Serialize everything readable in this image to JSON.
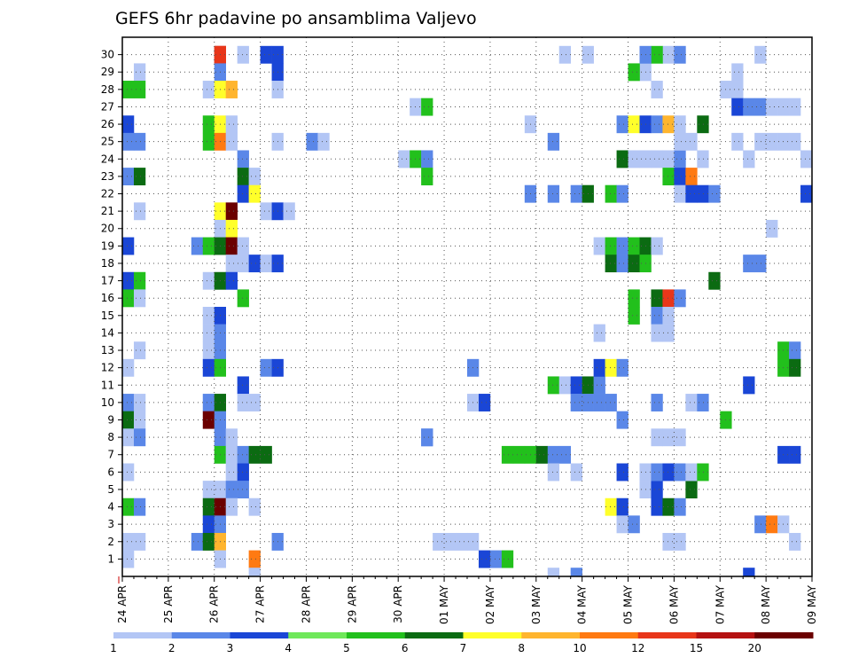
{
  "chart_data": {
    "type": "heatmap",
    "title": "GEFS 6hr padavine po ansamblima Valjevo",
    "y_ticks": [
      1,
      2,
      3,
      4,
      5,
      6,
      7,
      8,
      9,
      10,
      11,
      12,
      13,
      14,
      15,
      16,
      17,
      18,
      19,
      20,
      21,
      22,
      23,
      24,
      25,
      26,
      27,
      28,
      29,
      30
    ],
    "x_tick_labels": [
      "24 APR",
      "25 APR",
      "26 APR",
      "27 APR",
      "28 APR",
      "29 APR",
      "30 APR",
      "01 MAY",
      "02 MAY",
      "03 MAY",
      "04 MAY",
      "05 MAY",
      "06 MAY",
      "07 MAY",
      "08 MAY",
      "09 MAY"
    ],
    "x_range_days": [
      0,
      15
    ],
    "y_range_members": [
      0,
      31
    ],
    "grid": true,
    "colorbar": {
      "levels": [
        "1",
        "2",
        "3",
        "4",
        "5",
        "6",
        "7",
        "8",
        "10",
        "12",
        "15",
        "20"
      ],
      "colors": [
        "#b3c6f5",
        "#5a87e8",
        "#1a46d6",
        "#6fe85a",
        "#22c01c",
        "#0b6b12",
        "#ffff2a",
        "#ffb52e",
        "#ff7a12",
        "#e8361a",
        "#b51212",
        "#6b0000"
      ]
    },
    "cells_note": "each cell = [day_index(0.25=6h), member, color_class(0-11)]",
    "cells": [
      [
        2.0,
        30,
        10
      ],
      [
        2.0,
        30,
        9
      ],
      [
        2.5,
        30,
        0
      ],
      [
        3.0,
        30,
        2
      ],
      [
        3.25,
        30,
        2
      ],
      [
        0.25,
        29,
        0
      ],
      [
        2.0,
        29,
        1
      ],
      [
        3.25,
        29,
        2
      ],
      [
        0.0,
        28,
        4
      ],
      [
        0.25,
        28,
        4
      ],
      [
        1.75,
        28,
        0
      ],
      [
        2.0,
        28,
        6
      ],
      [
        2.25,
        28,
        7
      ],
      [
        3.25,
        28,
        0
      ],
      [
        6.25,
        27,
        0
      ],
      [
        6.5,
        27,
        4
      ],
      [
        0.0,
        26,
        2
      ],
      [
        1.75,
        26,
        4
      ],
      [
        2.0,
        26,
        6
      ],
      [
        2.25,
        26,
        0
      ],
      [
        0.0,
        25,
        1
      ],
      [
        0.25,
        25,
        1
      ],
      [
        1.75,
        25,
        4
      ],
      [
        2.0,
        25,
        8
      ],
      [
        2.25,
        25,
        0
      ],
      [
        3.25,
        25,
        0
      ],
      [
        4.0,
        25,
        1
      ],
      [
        4.25,
        25,
        0
      ],
      [
        2.5,
        24,
        1
      ],
      [
        6.0,
        24,
        0
      ],
      [
        6.25,
        24,
        4
      ],
      [
        6.5,
        24,
        1
      ],
      [
        0.0,
        23,
        1
      ],
      [
        0.25,
        23,
        5
      ],
      [
        2.5,
        23,
        5
      ],
      [
        2.75,
        23,
        0
      ],
      [
        6.5,
        23,
        4
      ],
      [
        2.5,
        22,
        2
      ],
      [
        2.75,
        22,
        6
      ],
      [
        0.25,
        21,
        0
      ],
      [
        2.0,
        21,
        6
      ],
      [
        2.25,
        21,
        11
      ],
      [
        3.0,
        21,
        0
      ],
      [
        3.25,
        21,
        2
      ],
      [
        3.5,
        21,
        0
      ],
      [
        2.0,
        20,
        0
      ],
      [
        2.25,
        20,
        6
      ],
      [
        0.0,
        19,
        2
      ],
      [
        1.5,
        19,
        1
      ],
      [
        1.75,
        19,
        4
      ],
      [
        2.0,
        19,
        5
      ],
      [
        2.25,
        19,
        11
      ],
      [
        2.5,
        19,
        0
      ],
      [
        2.25,
        18,
        0
      ],
      [
        2.5,
        18,
        0
      ],
      [
        2.75,
        18,
        2
      ],
      [
        3.0,
        18,
        0
      ],
      [
        3.25,
        18,
        2
      ],
      [
        0.0,
        17,
        2
      ],
      [
        0.25,
        17,
        4
      ],
      [
        1.75,
        17,
        0
      ],
      [
        2.0,
        17,
        5
      ],
      [
        2.25,
        17,
        2
      ],
      [
        0.0,
        16,
        4
      ],
      [
        0.25,
        16,
        0
      ],
      [
        2.5,
        16,
        4
      ],
      [
        1.75,
        15,
        0
      ],
      [
        2.0,
        15,
        2
      ],
      [
        1.75,
        14,
        0
      ],
      [
        2.0,
        14,
        1
      ],
      [
        0.25,
        13,
        0
      ],
      [
        1.75,
        13,
        0
      ],
      [
        2.0,
        13,
        1
      ],
      [
        0.0,
        12,
        0
      ],
      [
        1.75,
        12,
        2
      ],
      [
        2.0,
        12,
        4
      ],
      [
        3.0,
        12,
        1
      ],
      [
        3.25,
        12,
        2
      ],
      [
        2.5,
        11,
        2
      ],
      [
        0.0,
        10,
        1
      ],
      [
        0.25,
        10,
        0
      ],
      [
        1.75,
        10,
        1
      ],
      [
        2.0,
        10,
        5
      ],
      [
        2.5,
        10,
        0
      ],
      [
        2.75,
        10,
        0
      ],
      [
        0.0,
        9,
        5
      ],
      [
        0.25,
        9,
        0
      ],
      [
        1.75,
        9,
        11
      ],
      [
        2.0,
        9,
        1
      ],
      [
        0.0,
        8,
        0
      ],
      [
        0.25,
        8,
        1
      ],
      [
        2.0,
        8,
        1
      ],
      [
        2.25,
        8,
        0
      ],
      [
        6.5,
        8,
        1
      ],
      [
        2.0,
        7,
        4
      ],
      [
        2.25,
        7,
        0
      ],
      [
        2.5,
        7,
        1
      ],
      [
        2.75,
        7,
        5
      ],
      [
        3.0,
        7,
        5
      ],
      [
        0.0,
        6,
        0
      ],
      [
        2.25,
        6,
        0
      ],
      [
        2.5,
        6,
        2
      ],
      [
        1.75,
        5,
        0
      ],
      [
        2.0,
        5,
        0
      ],
      [
        2.25,
        5,
        1
      ],
      [
        2.5,
        5,
        1
      ],
      [
        0.0,
        4,
        4
      ],
      [
        0.25,
        4,
        1
      ],
      [
        1.75,
        4,
        5
      ],
      [
        2.0,
        4,
        11
      ],
      [
        2.25,
        4,
        0
      ],
      [
        2.75,
        4,
        0
      ],
      [
        1.75,
        3,
        2
      ],
      [
        2.0,
        3,
        1
      ],
      [
        0.0,
        2,
        0
      ],
      [
        0.25,
        2,
        0
      ],
      [
        1.5,
        2,
        1
      ],
      [
        1.75,
        2,
        5
      ],
      [
        2.0,
        2,
        7
      ],
      [
        3.25,
        2,
        1
      ],
      [
        6.75,
        2,
        0
      ],
      [
        7.0,
        2,
        0
      ],
      [
        7.25,
        2,
        0
      ],
      [
        7.5,
        2,
        0
      ],
      [
        0.0,
        1,
        0
      ],
      [
        2.0,
        1,
        0
      ],
      [
        2.75,
        1,
        8
      ],
      [
        7.75,
        1,
        2
      ],
      [
        8.0,
        1,
        1
      ],
      [
        8.25,
        1,
        4
      ],
      [
        9.25,
        0,
        0
      ],
      [
        9.75,
        0,
        1
      ],
      [
        2.75,
        0,
        0
      ],
      [
        13.5,
        0,
        2
      ],
      [
        8.25,
        7,
        4
      ],
      [
        8.5,
        7,
        4
      ],
      [
        8.75,
        7,
        4
      ],
      [
        9.0,
        7,
        5
      ],
      [
        9.25,
        7,
        1
      ],
      [
        9.5,
        7,
        1
      ],
      [
        9.25,
        6,
        0
      ],
      [
        9.75,
        6,
        0
      ],
      [
        9.25,
        11,
        4
      ],
      [
        9.5,
        11,
        0
      ],
      [
        9.75,
        11,
        2
      ],
      [
        10.0,
        11,
        5
      ],
      [
        10.25,
        11,
        1
      ],
      [
        9.75,
        10,
        1
      ],
      [
        10.0,
        10,
        1
      ],
      [
        10.25,
        10,
        1
      ],
      [
        10.5,
        10,
        1
      ],
      [
        10.25,
        12,
        2
      ],
      [
        10.5,
        12,
        6
      ],
      [
        10.75,
        12,
        1
      ],
      [
        7.5,
        10,
        0
      ],
      [
        7.75,
        10,
        2
      ],
      [
        7.5,
        12,
        1
      ],
      [
        6.5,
        8,
        1
      ],
      [
        10.75,
        9,
        1
      ],
      [
        10.5,
        4,
        6
      ],
      [
        10.75,
        4,
        2
      ],
      [
        10.75,
        3,
        0
      ],
      [
        11.0,
        3,
        1
      ],
      [
        11.25,
        5,
        0
      ],
      [
        11.5,
        5,
        2
      ],
      [
        11.5,
        4,
        2
      ],
      [
        11.75,
        4,
        5
      ],
      [
        12.0,
        4,
        1
      ],
      [
        12.25,
        5,
        5
      ],
      [
        10.75,
        6,
        2
      ],
      [
        11.25,
        6,
        0
      ],
      [
        11.5,
        6,
        1
      ],
      [
        11.75,
        6,
        2
      ],
      [
        12.0,
        6,
        1
      ],
      [
        12.25,
        6,
        0
      ],
      [
        12.5,
        6,
        4
      ],
      [
        11.5,
        8,
        0
      ],
      [
        11.75,
        8,
        0
      ],
      [
        12.0,
        8,
        0
      ],
      [
        11.5,
        10,
        1
      ],
      [
        12.25,
        10,
        0
      ],
      [
        12.5,
        10,
        1
      ],
      [
        11.75,
        2,
        0
      ],
      [
        12.0,
        2,
        0
      ],
      [
        13.0,
        9,
        4
      ],
      [
        13.5,
        11,
        2
      ],
      [
        14.25,
        13,
        4
      ],
      [
        14.5,
        13,
        1
      ],
      [
        14.25,
        12,
        4
      ],
      [
        14.5,
        12,
        5
      ],
      [
        13.75,
        3,
        1
      ],
      [
        14.0,
        3,
        8
      ],
      [
        14.25,
        3,
        0
      ],
      [
        14.5,
        2,
        0
      ],
      [
        14.5,
        7,
        2
      ],
      [
        14.25,
        7,
        2
      ],
      [
        10.25,
        14,
        0
      ],
      [
        10.25,
        19,
        0
      ],
      [
        10.5,
        19,
        4
      ],
      [
        10.75,
        19,
        1
      ],
      [
        11.0,
        19,
        4
      ],
      [
        11.25,
        19,
        5
      ],
      [
        11.5,
        19,
        0
      ],
      [
        10.5,
        18,
        5
      ],
      [
        10.75,
        18,
        1
      ],
      [
        11.0,
        18,
        5
      ],
      [
        11.25,
        18,
        4
      ],
      [
        9.25,
        22,
        1
      ],
      [
        9.75,
        22,
        1
      ],
      [
        10.0,
        22,
        5
      ],
      [
        10.5,
        22,
        4
      ],
      [
        10.75,
        22,
        1
      ],
      [
        8.75,
        22,
        1
      ],
      [
        11.0,
        16,
        4
      ],
      [
        11.5,
        16,
        5
      ],
      [
        11.75,
        16,
        9
      ],
      [
        12.0,
        16,
        1
      ],
      [
        11.0,
        15,
        4
      ],
      [
        11.5,
        15,
        1
      ],
      [
        11.75,
        15,
        0
      ],
      [
        12.75,
        17,
        5
      ],
      [
        11.25,
        24,
        0
      ],
      [
        11.5,
        24,
        0
      ],
      [
        11.75,
        24,
        0
      ],
      [
        12.0,
        24,
        1
      ],
      [
        10.75,
        24,
        5
      ],
      [
        11.0,
        24,
        0
      ],
      [
        12.5,
        24,
        0
      ],
      [
        11.75,
        23,
        4
      ],
      [
        12.0,
        23,
        2
      ],
      [
        12.25,
        23,
        8
      ],
      [
        12.0,
        22,
        0
      ],
      [
        12.25,
        22,
        2
      ],
      [
        12.5,
        22,
        2
      ],
      [
        12.75,
        22,
        1
      ],
      [
        10.75,
        26,
        1
      ],
      [
        11.0,
        26,
        6
      ],
      [
        11.25,
        26,
        2
      ],
      [
        11.5,
        26,
        1
      ],
      [
        11.75,
        26,
        7
      ],
      [
        12.0,
        26,
        0
      ],
      [
        12.5,
        26,
        5
      ],
      [
        12.0,
        25,
        0
      ],
      [
        12.25,
        25,
        0
      ],
      [
        9.25,
        25,
        1
      ],
      [
        8.75,
        26,
        0
      ],
      [
        11.5,
        28,
        0
      ],
      [
        11.25,
        29,
        0
      ],
      [
        11.0,
        29,
        4
      ],
      [
        11.75,
        30,
        0
      ],
      [
        11.5,
        30,
        4
      ],
      [
        11.25,
        30,
        1
      ],
      [
        12.0,
        30,
        1
      ],
      [
        13.0,
        28,
        0
      ],
      [
        13.25,
        28,
        0
      ],
      [
        13.25,
        29,
        0
      ],
      [
        13.25,
        27,
        2
      ],
      [
        13.5,
        27,
        1
      ],
      [
        13.75,
        27,
        1
      ],
      [
        14.0,
        27,
        0
      ],
      [
        14.25,
        27,
        0
      ],
      [
        14.5,
        27,
        0
      ],
      [
        13.25,
        25,
        0
      ],
      [
        13.75,
        25,
        0
      ],
      [
        14.0,
        25,
        0
      ],
      [
        14.25,
        25,
        0
      ],
      [
        14.5,
        25,
        0
      ],
      [
        13.5,
        24,
        0
      ],
      [
        14.75,
        24,
        0
      ],
      [
        14.0,
        20,
        0
      ],
      [
        13.75,
        18,
        1
      ],
      [
        13.5,
        18,
        1
      ],
      [
        14.75,
        22,
        2
      ],
      [
        13.75,
        30,
        0
      ],
      [
        9.5,
        30,
        0
      ],
      [
        10.0,
        30,
        0
      ],
      [
        11.5,
        14,
        0
      ],
      [
        11.75,
        14,
        0
      ]
    ]
  }
}
